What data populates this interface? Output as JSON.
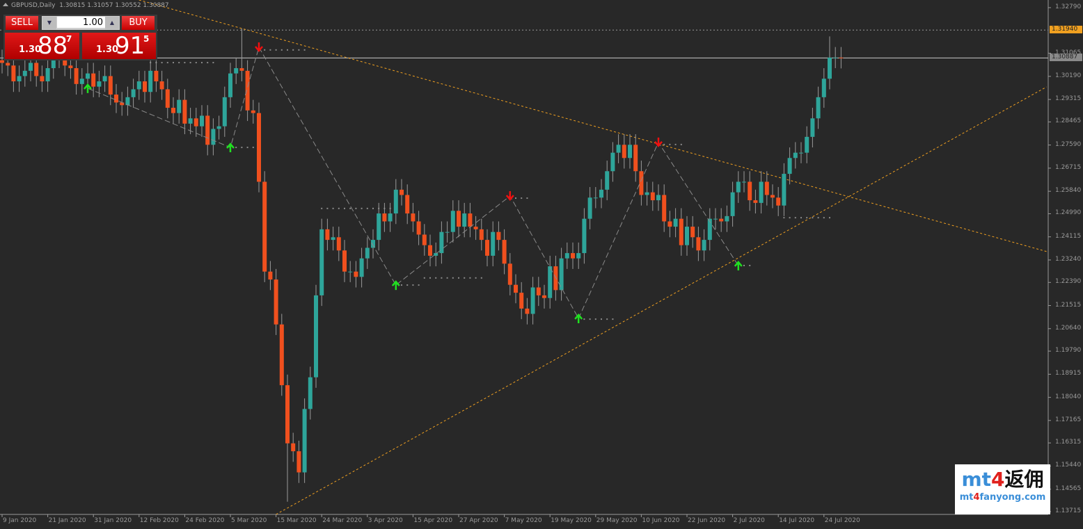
{
  "header": {
    "symbol": "GBPUSD,Daily",
    "ohlc": "1.30815 1.31057 1.30552 1.30887"
  },
  "trade_panel": {
    "sell_label": "SELL",
    "buy_label": "BUY",
    "lot": "1.00",
    "bid": {
      "prefix": "1.30",
      "big": "88",
      "sup": "7"
    },
    "ask": {
      "prefix": "1.30",
      "big": "91",
      "sup": "5"
    }
  },
  "logo": {
    "line1_a": "mt",
    "line1_b": "4",
    "line1_c": "返佣",
    "line2_a": "mt",
    "line2_b": "4",
    "line2_c": "fanyong.com"
  },
  "chart_data": {
    "type": "candlestick",
    "title": "GBPUSD,Daily",
    "colors": {
      "up": "#2ea59a",
      "down": "#f0501e",
      "bg": "#282828",
      "trend": "#f0a020",
      "grid_line": "#9a9a9a",
      "buy_arrow": "#20e020",
      "sell_arrow": "#f01010"
    },
    "ylim": [
      1.13715,
      1.3279
    ],
    "yticks": [
      "1.32790",
      "1.31065",
      "1.30190",
      "1.29315",
      "1.28465",
      "1.27590",
      "1.26715",
      "1.25840",
      "1.24990",
      "1.24115",
      "1.23240",
      "1.22390",
      "1.21515",
      "1.20640",
      "1.19790",
      "1.18915",
      "1.18040",
      "1.17165",
      "1.16315",
      "1.15440",
      "1.14565",
      "1.13715"
    ],
    "current_price": "1.30887",
    "level_price": "1.31940",
    "xticks": [
      {
        "label": "9 Jan 2020",
        "bar": 1
      },
      {
        "label": "21 Jan 2020",
        "bar": 9
      },
      {
        "label": "31 Jan 2020",
        "bar": 17
      },
      {
        "label": "12 Feb 2020",
        "bar": 25
      },
      {
        "label": "24 Feb 2020",
        "bar": 33
      },
      {
        "label": "5 Mar 2020",
        "bar": 41
      },
      {
        "label": "15 Mar 2020",
        "bar": 49
      },
      {
        "label": "24 Mar 2020",
        "bar": 57
      },
      {
        "label": "3 Apr 2020",
        "bar": 65
      },
      {
        "label": "15 Apr 2020",
        "bar": 73
      },
      {
        "label": "27 Apr 2020",
        "bar": 81
      },
      {
        "label": "7 May 2020",
        "bar": 89
      },
      {
        "label": "19 May 2020",
        "bar": 97
      },
      {
        "label": "29 May 2020",
        "bar": 105
      },
      {
        "label": "10 Jun 2020",
        "bar": 113
      },
      {
        "label": "22 Jun 2020",
        "bar": 121
      },
      {
        "label": "2 Jul 2020",
        "bar": 129
      },
      {
        "label": "14 Jul 2020",
        "bar": 137
      },
      {
        "label": "24 Jul 2020",
        "bar": 145
      }
    ],
    "first_open": 1.308,
    "wick": 0.004,
    "close": [
      1.307,
      1.306,
      1.3,
      1.302,
      1.304,
      1.307,
      1.302,
      1.3,
      1.305,
      1.309,
      1.311,
      1.306,
      1.305,
      1.299,
      1.301,
      1.303,
      1.298,
      1.3,
      1.302,
      1.295,
      1.292,
      1.291,
      1.294,
      1.297,
      1.3,
      1.296,
      1.304,
      1.3,
      1.297,
      1.29,
      1.288,
      1.293,
      1.284,
      1.286,
      1.283,
      1.287,
      1.276,
      1.282,
      1.283,
      1.294,
      1.303,
      1.305,
      1.304,
      1.289,
      1.288,
      1.262,
      1.228,
      1.225,
      1.208,
      1.185,
      1.163,
      1.16,
      1.152,
      1.176,
      1.188,
      1.219,
      1.244,
      1.24,
      1.241,
      1.236,
      1.228,
      1.228,
      1.226,
      1.233,
      1.237,
      1.24,
      1.25,
      1.247,
      1.25,
      1.259,
      1.257,
      1.25,
      1.247,
      1.242,
      1.238,
      1.234,
      1.235,
      1.243,
      1.243,
      1.251,
      1.245,
      1.25,
      1.245,
      1.244,
      1.24,
      1.234,
      1.243,
      1.24,
      1.231,
      1.223,
      1.22,
      1.214,
      1.212,
      1.222,
      1.219,
      1.218,
      1.23,
      1.221,
      1.233,
      1.235,
      1.233,
      1.235,
      1.248,
      1.256,
      1.256,
      1.259,
      1.266,
      1.273,
      1.276,
      1.271,
      1.276,
      1.266,
      1.257,
      1.258,
      1.255,
      1.257,
      1.247,
      1.245,
      1.248,
      1.238,
      1.245,
      1.241,
      1.236,
      1.24,
      1.248,
      1.248,
      1.247,
      1.249,
      1.258,
      1.262,
      1.262,
      1.255,
      1.254,
      1.262,
      1.257,
      1.256,
      1.253,
      1.265,
      1.271,
      1.273,
      1.273,
      1.279,
      1.286,
      1.294,
      1.301,
      1.309,
      1.309,
      1.3089
    ],
    "extremes": [
      {
        "bar": 43,
        "high": 1.32
      },
      {
        "bar": 51,
        "low": 1.1409
      },
      {
        "bar": 146,
        "high": 1.317
      }
    ],
    "trendlines": [
      {
        "bar1": 25,
        "price1": 1.3308,
        "bar2": 184,
        "price2": 1.2356
      },
      {
        "bar1": 49,
        "price1": 1.1361,
        "bar2": 184,
        "price2": 1.2979
      }
    ],
    "signals": [
      {
        "type": "buy",
        "bar": 16,
        "price": 1.2974
      },
      {
        "type": "buy",
        "bar": 41,
        "price": 1.275
      },
      {
        "type": "sell",
        "bar": 46,
        "price": 1.3129
      },
      {
        "type": "buy",
        "bar": 70,
        "price": 1.2229
      },
      {
        "type": "sell",
        "bar": 90,
        "price": 1.2566
      },
      {
        "type": "buy",
        "bar": 102,
        "price": 1.2103
      },
      {
        "type": "sell",
        "bar": 116,
        "price": 1.2769
      },
      {
        "type": "buy",
        "bar": 130,
        "price": 1.2303
      }
    ],
    "dot_levels": [
      {
        "from": 27,
        "to": 38,
        "price": 1.3071
      },
      {
        "from": 41,
        "to": 45,
        "price": 1.275
      },
      {
        "from": 47,
        "to": 54,
        "price": 1.3119
      },
      {
        "from": 57,
        "to": 69,
        "price": 1.2519
      },
      {
        "from": 70,
        "to": 74,
        "price": 1.2229
      },
      {
        "from": 75,
        "to": 85,
        "price": 1.2256
      },
      {
        "from": 90,
        "to": 93,
        "price": 1.2558
      },
      {
        "from": 102,
        "to": 108,
        "price": 1.21
      },
      {
        "from": 117,
        "to": 120,
        "price": 1.2761
      },
      {
        "from": 130,
        "to": 132,
        "price": 1.2303
      },
      {
        "from": 138,
        "to": 146,
        "price": 1.2484
      }
    ]
  }
}
